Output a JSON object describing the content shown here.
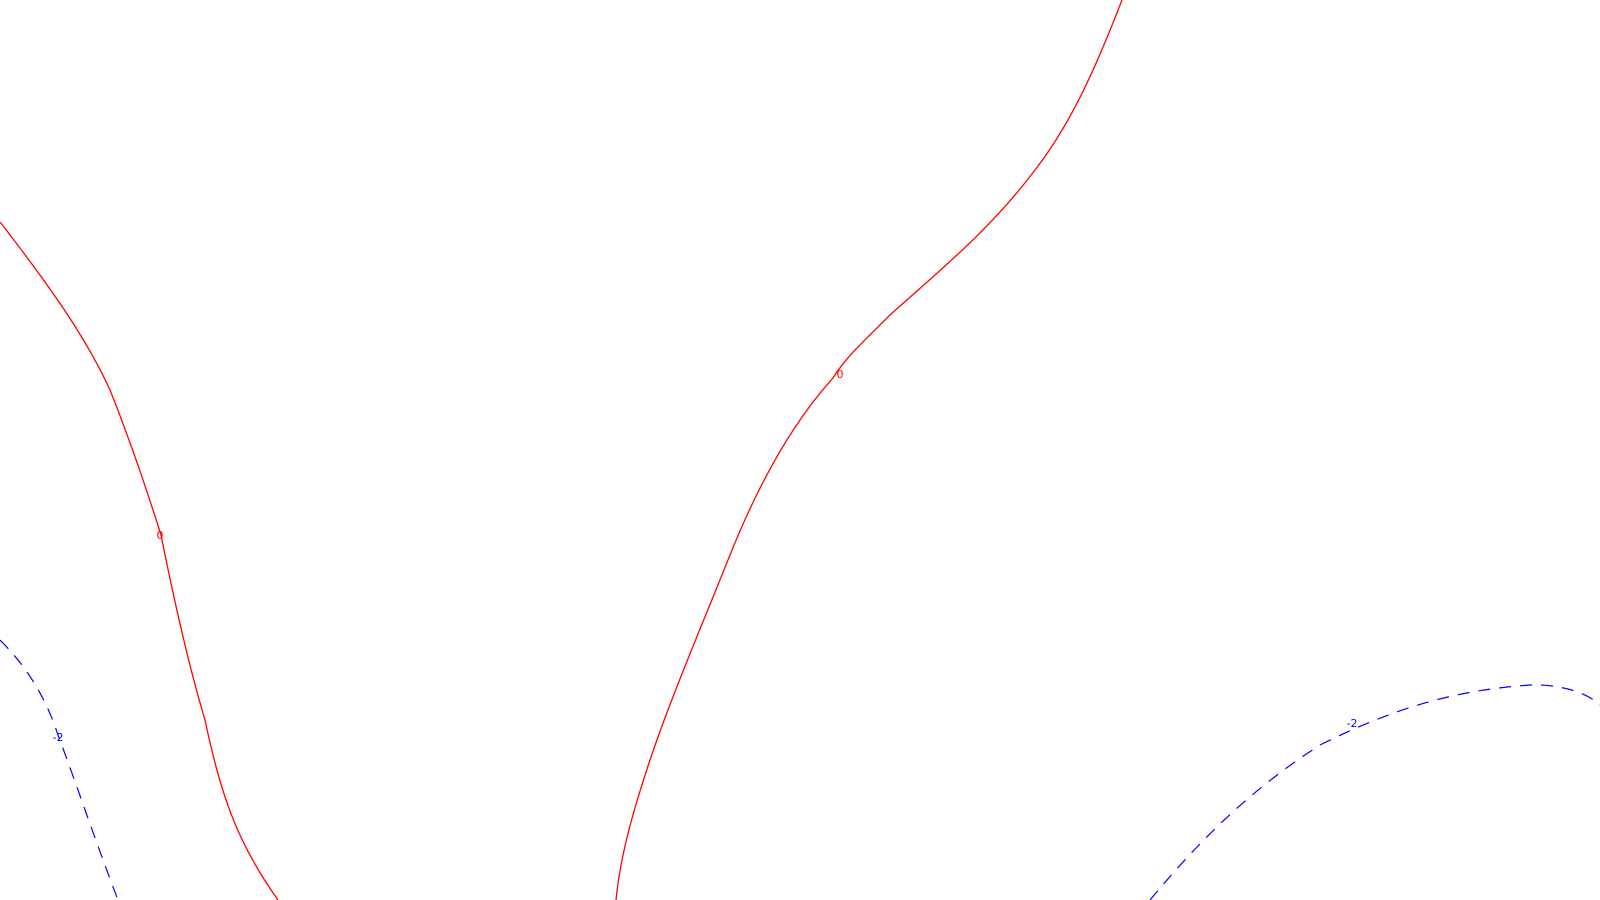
{
  "colors": {
    "background": "#ffffff",
    "zero_contour": "#ff0000",
    "negative_contour": "#0000ff"
  },
  "contours": {
    "zero_left": {
      "level_label": "0",
      "style": "solid",
      "color": "#ff0000"
    },
    "zero_center": {
      "level_label": "0",
      "style": "solid",
      "color": "#ff0000"
    },
    "neg_left": {
      "level_label": "-2",
      "style": "dashed",
      "color": "#0000ff"
    },
    "neg_right": {
      "level_label": "-2",
      "style": "dashed",
      "color": "#0000ff"
    }
  }
}
